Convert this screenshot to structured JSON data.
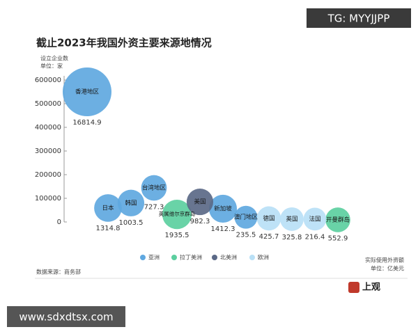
{
  "chart_data": {
    "type": "bubble",
    "title": "截止2023年我国外资主要来源地情况",
    "ylabel": [
      "设立企业数",
      "单位：家"
    ],
    "size_label": [
      "实际使用外资额",
      "单位：亿美元"
    ],
    "source": "数据来源：商务部",
    "ylim": [
      0,
      600000
    ],
    "yticks": [
      0,
      100000,
      200000,
      300000,
      400000,
      500000,
      600000
    ],
    "categories": [
      "香港地区",
      "日本",
      "韩国",
      "台湾地区",
      "英属维尔京群岛",
      "美国",
      "新加坡",
      "澳门地区",
      "德国",
      "英国",
      "法国",
      "开曼群岛"
    ],
    "series": [
      {
        "name": "亚洲",
        "color": "#5fa8e0",
        "values": [
          550000,
          59000,
          80000,
          144000,
          null,
          null,
          56000,
          20000,
          null,
          null,
          null,
          null
        ],
        "sizes": [
          16814.9,
          1314.8,
          1003.5,
          727.3,
          null,
          null,
          1412.3,
          235.5,
          null,
          null,
          null,
          null
        ]
      },
      {
        "name": "拉丁美洲",
        "color": "#5ccf9f",
        "values": [
          null,
          null,
          null,
          null,
          32000,
          null,
          null,
          null,
          null,
          null,
          null,
          9000
        ],
        "sizes": [
          null,
          null,
          null,
          null,
          1935.5,
          null,
          null,
          null,
          null,
          null,
          null,
          552.9
        ]
      },
      {
        "name": "北美洲",
        "color": "#5b6987",
        "values": [
          null,
          null,
          null,
          null,
          null,
          85000,
          null,
          null,
          null,
          null,
          null,
          null
        ],
        "sizes": [
          null,
          null,
          null,
          null,
          null,
          982.3,
          null,
          null,
          null,
          null,
          null,
          null
        ]
      },
      {
        "name": "欧洲",
        "color": "#b9e0f6",
        "values": [
          null,
          null,
          null,
          null,
          null,
          null,
          null,
          null,
          15000,
          12000,
          12000,
          null
        ],
        "sizes": [
          null,
          null,
          null,
          null,
          null,
          null,
          null,
          null,
          425.7,
          325.8,
          216.4,
          null
        ]
      }
    ]
  },
  "logo": "上观",
  "watermarks": [
    "TG: MYYJJPP",
    "www.sdxdtsx.com"
  ]
}
